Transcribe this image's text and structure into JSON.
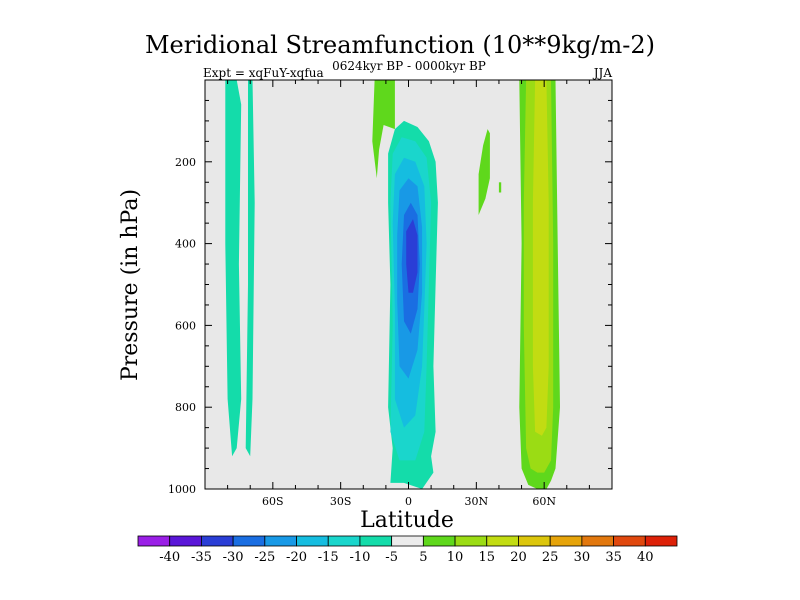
{
  "chart_data": {
    "type": "heatmap",
    "title": "Meridional Streamfunction (10**9kg/m-2)",
    "subtitle_left": "Expt = xqFuY-xqfua",
    "subtitle_center": "0624kyr BP - 0000kyr BP",
    "subtitle_right": "JJA",
    "xlabel": "Latitude",
    "ylabel": "Pressure (in hPa)",
    "xlim": [
      -90,
      90
    ],
    "ylim": [
      1000,
      0
    ],
    "x_ticks": [
      {
        "value": -60,
        "label": "60S"
      },
      {
        "value": -30,
        "label": "30S"
      },
      {
        "value": 0,
        "label": "0"
      },
      {
        "value": 30,
        "label": "30N"
      },
      {
        "value": 60,
        "label": "60N"
      }
    ],
    "y_ticks": [
      {
        "value": 200,
        "label": "200"
      },
      {
        "value": 400,
        "label": "400"
      },
      {
        "value": 600,
        "label": "600"
      },
      {
        "value": 800,
        "label": "800"
      },
      {
        "value": 1000,
        "label": "1000"
      }
    ],
    "colorbar": {
      "labels": [
        "-40",
        "-35",
        "-30",
        "-25",
        "-20",
        "-15",
        "-10",
        "-5",
        "5",
        "10",
        "15",
        "20",
        "25",
        "30",
        "35",
        "40"
      ],
      "colors": [
        "#9a1fe6",
        "#5a16d8",
        "#2a3ed6",
        "#1a6ee2",
        "#1899e6",
        "#15bde0",
        "#1ad6cc",
        "#14dcaa",
        "#ececec",
        "#5fd81c",
        "#9bdc14",
        "#c2dc12",
        "#dcc60c",
        "#e6a40a",
        "#e2780e",
        "#e0480e",
        "#dd2108"
      ]
    },
    "regions": [
      {
        "value": -7,
        "pts": [
          [
            -81,
            0
          ],
          [
            -76,
            0
          ],
          [
            -74,
            60
          ],
          [
            -75,
            450
          ],
          [
            -74,
            780
          ],
          [
            -76,
            900
          ],
          [
            -78,
            920
          ],
          [
            -80,
            780
          ],
          [
            -81,
            400
          ]
        ]
      },
      {
        "value": -7,
        "pts": [
          [
            -71,
            0
          ],
          [
            -69,
            0
          ],
          [
            -68,
            300
          ],
          [
            -69,
            780
          ],
          [
            -70,
            920
          ],
          [
            -72,
            900
          ],
          [
            -71,
            500
          ]
        ]
      },
      {
        "value": 7,
        "pts": [
          [
            -15,
            0
          ],
          [
            -6,
            0
          ],
          [
            -6,
            120
          ],
          [
            -11,
            110
          ],
          [
            -13,
            170
          ],
          [
            -14,
            240
          ],
          [
            -16,
            150
          ]
        ]
      },
      {
        "value": -7,
        "pts": [
          [
            -6,
            120
          ],
          [
            -2,
            100
          ],
          [
            4,
            115
          ],
          [
            9,
            150
          ],
          [
            12,
            200
          ],
          [
            13,
            300
          ],
          [
            12,
            500
          ],
          [
            11,
            700
          ],
          [
            12,
            860
          ],
          [
            10,
            920
          ],
          [
            11,
            960
          ],
          [
            6,
            1000
          ],
          [
            -2,
            985
          ],
          [
            -8,
            985
          ],
          [
            -7,
            900
          ],
          [
            -9,
            800
          ],
          [
            -8,
            500
          ],
          [
            -9,
            300
          ],
          [
            -9,
            180
          ]
        ]
      },
      {
        "value": -12,
        "pts": [
          [
            -7,
            180
          ],
          [
            -3,
            140
          ],
          [
            3,
            150
          ],
          [
            8,
            190
          ],
          [
            10,
            300
          ],
          [
            9,
            500
          ],
          [
            8,
            700
          ],
          [
            7,
            860
          ],
          [
            3,
            930
          ],
          [
            -4,
            930
          ],
          [
            -8,
            860
          ],
          [
            -7,
            600
          ],
          [
            -8,
            300
          ]
        ]
      },
      {
        "value": -17,
        "pts": [
          [
            -6,
            230
          ],
          [
            -2,
            190
          ],
          [
            3,
            200
          ],
          [
            7,
            260
          ],
          [
            8,
            400
          ],
          [
            7,
            560
          ],
          [
            6,
            700
          ],
          [
            3,
            820
          ],
          [
            -2,
            850
          ],
          [
            -6,
            780
          ],
          [
            -6,
            560
          ],
          [
            -7,
            350
          ]
        ]
      },
      {
        "value": -22,
        "pts": [
          [
            -4,
            270
          ],
          [
            0,
            240
          ],
          [
            4,
            260
          ],
          [
            6,
            360
          ],
          [
            6,
            520
          ],
          [
            4,
            660
          ],
          [
            0,
            730
          ],
          [
            -4,
            700
          ],
          [
            -5,
            540
          ],
          [
            -5,
            380
          ]
        ]
      },
      {
        "value": -27,
        "pts": [
          [
            -2,
            330
          ],
          [
            1,
            300
          ],
          [
            4,
            330
          ],
          [
            5,
            450
          ],
          [
            4,
            560
          ],
          [
            1,
            620
          ],
          [
            -2,
            590
          ],
          [
            -3,
            450
          ]
        ]
      },
      {
        "value": -32,
        "pts": [
          [
            -1,
            370
          ],
          [
            2,
            340
          ],
          [
            4,
            380
          ],
          [
            4,
            470
          ],
          [
            2,
            520
          ],
          [
            0,
            520
          ],
          [
            -1,
            450
          ]
        ]
      },
      {
        "value": 7,
        "pts": [
          [
            35,
            120
          ],
          [
            36,
            130
          ],
          [
            36,
            240
          ],
          [
            34,
            290
          ],
          [
            31,
            330
          ],
          [
            31,
            230
          ],
          [
            33,
            160
          ]
        ]
      },
      {
        "value": 7,
        "pts": [
          [
            40,
            250
          ],
          [
            41,
            250
          ],
          [
            41,
            275
          ],
          [
            40,
            275
          ]
        ]
      },
      {
        "value": 7,
        "pts": [
          [
            49,
            0
          ],
          [
            65,
            0
          ],
          [
            66,
            400
          ],
          [
            67,
            800
          ],
          [
            65,
            950
          ],
          [
            63,
            980
          ],
          [
            60,
            1010
          ],
          [
            57,
            1000
          ],
          [
            53,
            990
          ],
          [
            50,
            950
          ],
          [
            49,
            800
          ],
          [
            50,
            400
          ]
        ]
      },
      {
        "value": 12,
        "pts": [
          [
            52,
            0
          ],
          [
            63,
            0
          ],
          [
            64,
            400
          ],
          [
            64,
            800
          ],
          [
            63,
            930
          ],
          [
            60,
            960
          ],
          [
            57,
            960
          ],
          [
            54,
            950
          ],
          [
            52,
            900
          ],
          [
            51,
            600
          ],
          [
            51,
            300
          ]
        ]
      },
      {
        "value": 17,
        "pts": [
          [
            56,
            0
          ],
          [
            61,
            0
          ],
          [
            62,
            300
          ],
          [
            62,
            700
          ],
          [
            61,
            850
          ],
          [
            59,
            870
          ],
          [
            56,
            860
          ],
          [
            55,
            700
          ],
          [
            55,
            300
          ]
        ]
      }
    ]
  }
}
